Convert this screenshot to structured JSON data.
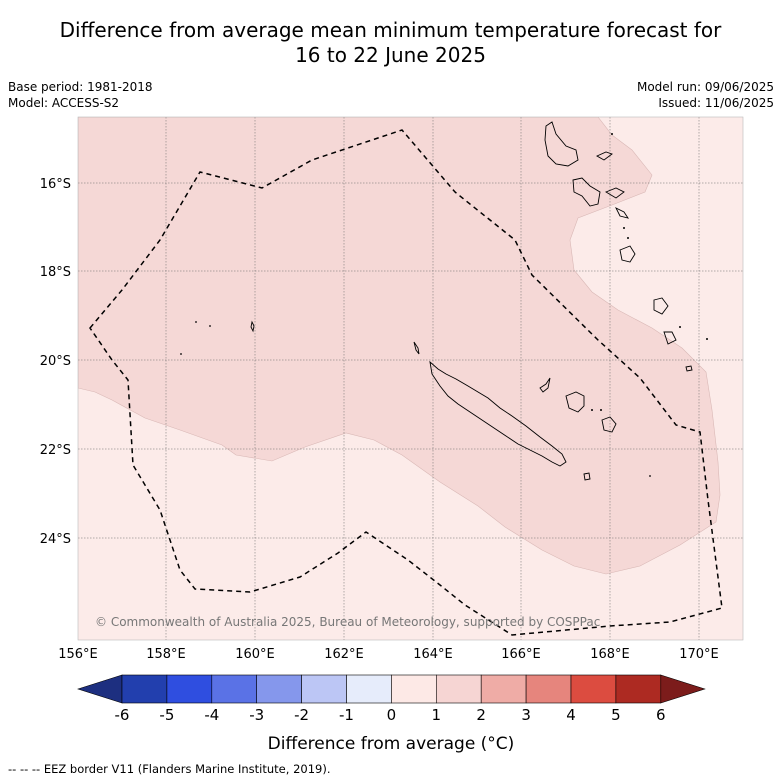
{
  "title_line1": "Difference from average mean minimum temperature forecast for",
  "title_line2": "16 to 22 June 2025",
  "base_period": "Base period: 1981-2018",
  "model": "Model: ACCESS-S2",
  "model_run": "Model run: 09/06/2025",
  "issued": "Issued: 11/06/2025",
  "copyright": "© Commonwealth of Australia 2025, Bureau of Meteorology, supported by COSPPac",
  "lat_labels": [
    "16°S",
    "18°S",
    "20°S",
    "22°S",
    "24°S"
  ],
  "lon_labels": [
    "156°E",
    "158°E",
    "160°E",
    "162°E",
    "164°E",
    "166°E",
    "168°E",
    "170°E"
  ],
  "colorbar": {
    "ticks": [
      "-6",
      "-5",
      "-4",
      "-3",
      "-2",
      "-1",
      "0",
      "1",
      "2",
      "3",
      "4",
      "5",
      "6"
    ],
    "colors": [
      "#1d2f80",
      "#223fae",
      "#2f4ee0",
      "#5a72e6",
      "#8597ec",
      "#bcc6f5",
      "#e6ecfb",
      "#fde9e6",
      "#f6d5d3",
      "#efaca6",
      "#e6857d",
      "#dc4c40",
      "#ad2a22",
      "#7c1c1b"
    ],
    "label": "Difference from average (°C)"
  },
  "legend_line": "--  --  -- EEZ border V11 (Flanders Marine Institute, 2019).",
  "map_fill": {
    "zone_0_to_1": "#fcebe9",
    "zone_1_to_2": "#f5d8d6"
  }
}
